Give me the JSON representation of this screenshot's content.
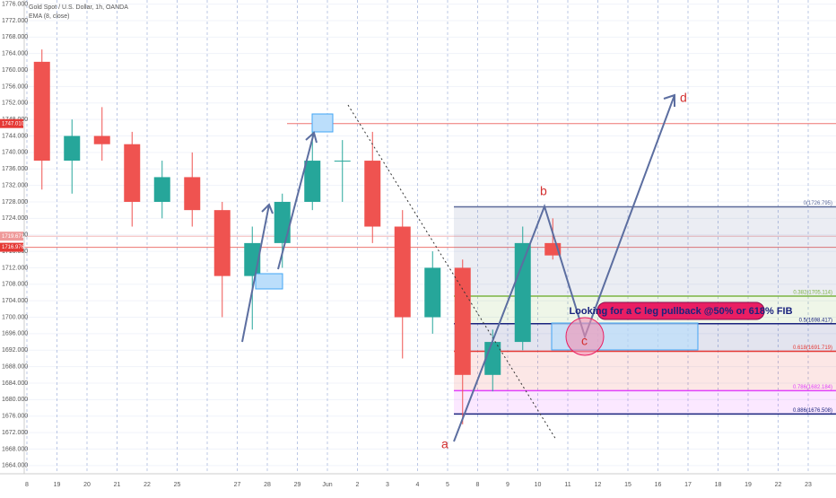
{
  "chart_data": {
    "type": "candlestick",
    "title": "Gold Spot / U.S. Dollar, 1h, OANDA",
    "subtitle": "EMA (8, close)",
    "categories": [
      "8",
      "19",
      "20",
      "21",
      "22",
      "25",
      null,
      "27",
      "28",
      "29",
      "Jun",
      "2",
      "3",
      "4",
      "5",
      "8",
      "9",
      "10",
      "11",
      "12",
      "15",
      "16",
      "17",
      "18",
      "19",
      "22",
      "23"
    ],
    "open": [
      1762,
      1738,
      1744,
      1742,
      1728,
      1734,
      1726,
      1710,
      1718,
      1728,
      1738,
      1738,
      1722,
      1700,
      1712,
      1686,
      1694,
      1718,
      null,
      null,
      null,
      null,
      null,
      null,
      null,
      null,
      null
    ],
    "high": [
      1765,
      1748,
      1751,
      1745,
      1738,
      1740,
      1728,
      1722,
      1730,
      1745,
      1743,
      1745,
      1726,
      1716,
      1714,
      1697,
      1722,
      1724,
      null,
      null,
      null,
      null,
      null,
      null,
      null,
      null,
      null
    ],
    "low": [
      1731,
      1730,
      1738,
      1722,
      1724,
      1722,
      1700,
      1697,
      1712,
      1726,
      1728,
      1718,
      1690,
      1696,
      1674,
      1682,
      1692,
      1714,
      null,
      null,
      null,
      null,
      null,
      null,
      null,
      null,
      null
    ],
    "close": [
      1738,
      1744,
      1742,
      1728,
      1734,
      1726,
      1710,
      1718,
      1728,
      1738,
      1738,
      1722,
      1700,
      1712,
      1686,
      1694,
      1718,
      1715,
      null,
      null,
      null,
      null,
      null,
      null,
      null,
      null,
      null
    ],
    "up_color": "#26a69a",
    "down_color": "#ef5350",
    "ylim": [
      1662,
      1777
    ],
    "yticks": [
      {
        "value": 1664,
        "label": "1664.000"
      },
      {
        "value": 1668,
        "label": "1668.000"
      },
      {
        "value": 1672,
        "label": "1672.000"
      },
      {
        "value": 1676,
        "label": "1676.000"
      },
      {
        "value": 1680,
        "label": "1680.000"
      },
      {
        "value": 1684,
        "label": "1684.000"
      },
      {
        "value": 1688,
        "label": "1688.000"
      },
      {
        "value": 1692,
        "label": "1692.000"
      },
      {
        "value": 1696,
        "label": "1696.000"
      },
      {
        "value": 1700,
        "label": "1700.000"
      },
      {
        "value": 1704,
        "label": "1704.000"
      },
      {
        "value": 1708,
        "label": "1708.000"
      },
      {
        "value": 1712,
        "label": "1712.000"
      },
      {
        "value": 1716,
        "label": "1716.000"
      },
      {
        "value": 1720,
        "label": "1720.000"
      },
      {
        "value": 1724,
        "label": "1724.000"
      },
      {
        "value": 1728,
        "label": "1728.000"
      },
      {
        "value": 1732,
        "label": "1732.000"
      },
      {
        "value": 1736,
        "label": "1736.000"
      },
      {
        "value": 1740,
        "label": "1740.000"
      },
      {
        "value": 1744,
        "label": "1744.000"
      },
      {
        "value": 1748,
        "label": "1748.000"
      },
      {
        "value": 1752,
        "label": "1752.000"
      },
      {
        "value": 1756,
        "label": "1756.000"
      },
      {
        "value": 1760,
        "label": "1760.000"
      },
      {
        "value": 1764,
        "label": "1764.000"
      },
      {
        "value": 1768,
        "label": "1768.000"
      },
      {
        "value": 1772,
        "label": "1772.000"
      },
      {
        "value": 1776,
        "label": "1776.000"
      }
    ],
    "price_tags": [
      {
        "value": 1747.01,
        "label": "1747.010",
        "color": "#e53935"
      },
      {
        "value": 1719.671,
        "label": "1719.671",
        "color": "#ef9a9a"
      },
      {
        "value": 1716.976,
        "label": "1716.976",
        "color": "#e53935"
      }
    ],
    "fib_levels": [
      {
        "value": 1726.795,
        "label": "0(1726.795)",
        "color": "#5c6a9a"
      },
      {
        "value": 1705.114,
        "label": "0.382(1705.114)",
        "color": "#7cb342"
      },
      {
        "value": 1698.417,
        "label": "0.5(1698.417)",
        "color": "#1a237e"
      },
      {
        "value": 1691.719,
        "label": "0.618(1691.719)",
        "color": "#e53935"
      },
      {
        "value": 1682.184,
        "label": "0.786(1682.184)",
        "color": "#e040fb"
      },
      {
        "value": 1676.508,
        "label": "0.886(1676.508)",
        "color": "#1a237e"
      }
    ],
    "annotations": {
      "a": "a",
      "b": "b",
      "c": "c",
      "d": "d",
      "note": "Looking for a C leg pullback @50% or 618% FIB"
    }
  }
}
